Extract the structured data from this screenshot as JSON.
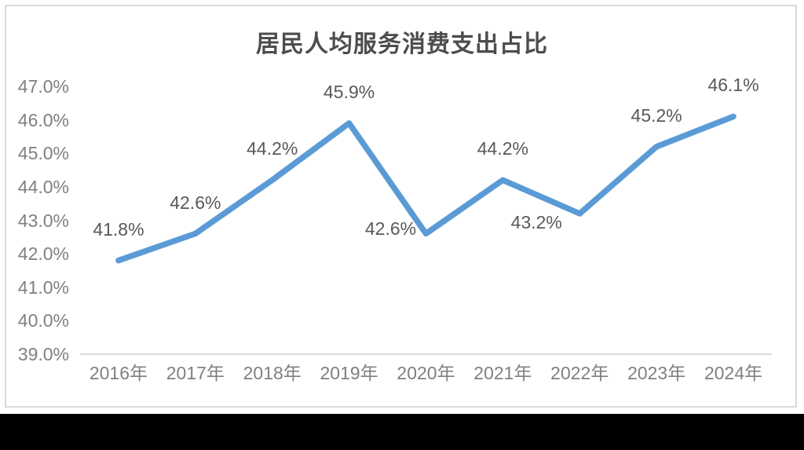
{
  "chart_data": {
    "type": "line",
    "title": "居民人均服务消费支出占比",
    "categories": [
      "2016年",
      "2017年",
      "2018年",
      "2019年",
      "2020年",
      "2021年",
      "2022年",
      "2023年",
      "2024年"
    ],
    "values": [
      41.8,
      42.6,
      44.2,
      45.9,
      42.6,
      44.2,
      43.2,
      45.2,
      46.1
    ],
    "data_labels": [
      "41.8%",
      "42.6%",
      "44.2%",
      "45.9%",
      "42.6%",
      "44.2%",
      "43.2%",
      "45.2%",
      "46.1%"
    ],
    "label_positions": [
      "above",
      "above",
      "above",
      "above",
      "left",
      "above",
      "below-left",
      "above",
      "above"
    ],
    "y_ticks": [
      "47.0%",
      "46.0%",
      "45.0%",
      "44.0%",
      "43.0%",
      "42.0%",
      "41.0%",
      "40.0%",
      "39.0%"
    ],
    "ylim": [
      39,
      47
    ],
    "y_step": 1,
    "xlabel": "",
    "ylabel": "",
    "grid": "off",
    "legend": "none",
    "colors": {
      "line": "#5B9BD5",
      "axis_line": "#D9D9D9",
      "panel_border": "#D9D9D9",
      "title_text": "#4D4D4D",
      "tick_text": "#808080",
      "data_label_text": "#595959",
      "letterbox": "#000000"
    }
  }
}
